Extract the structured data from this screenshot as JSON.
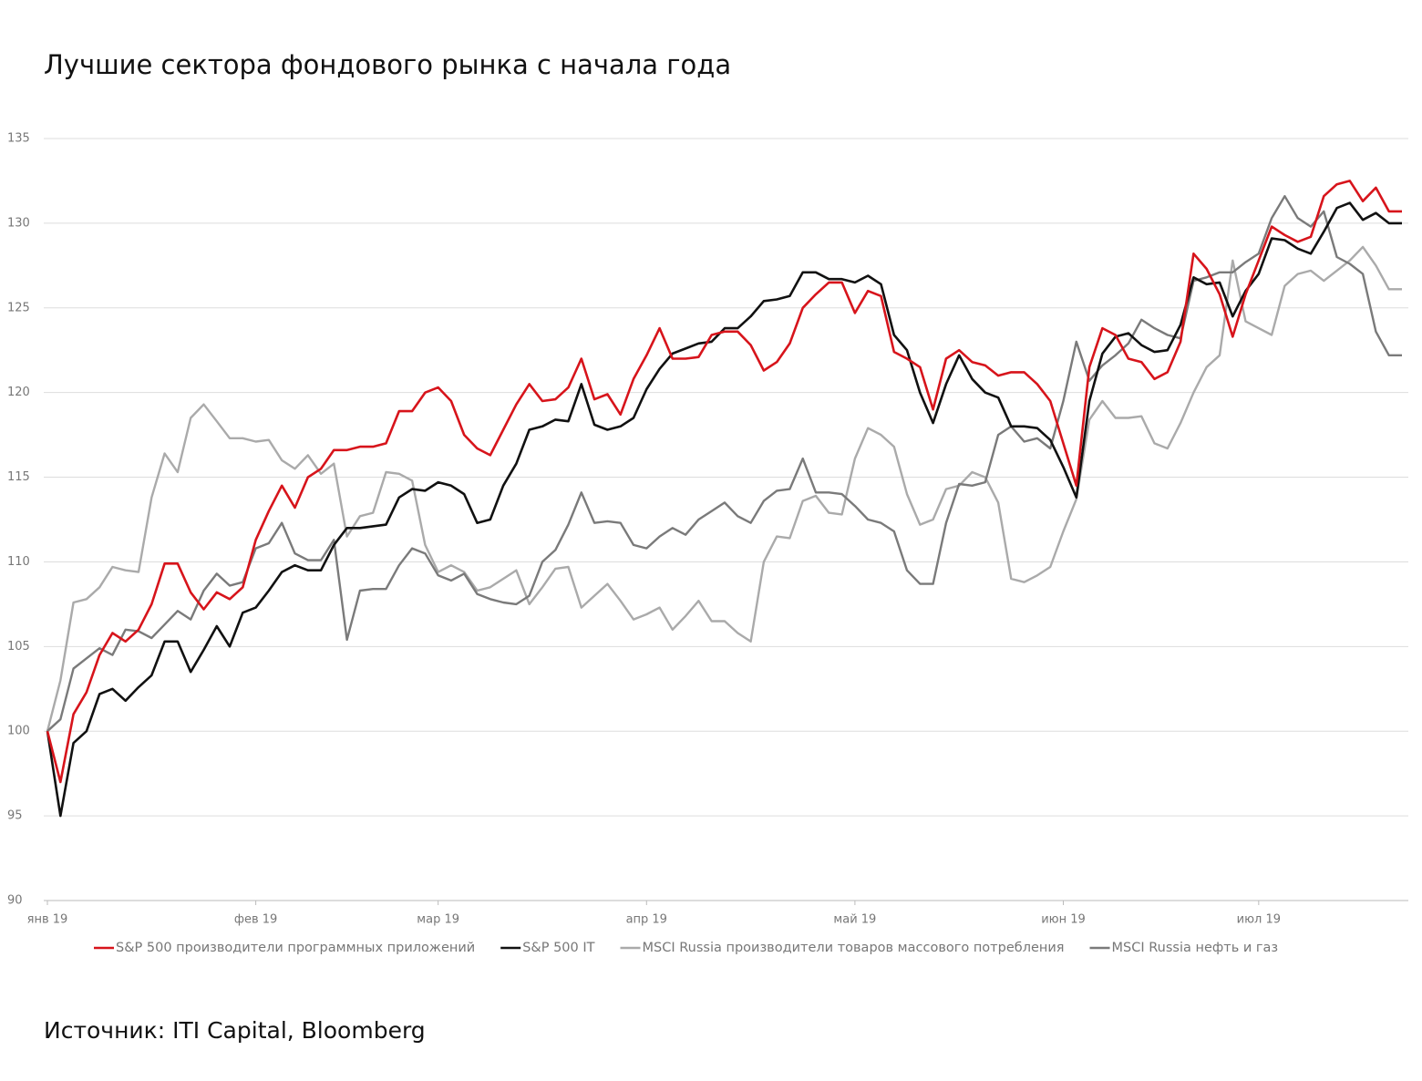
{
  "chart_data": {
    "type": "line",
    "title": "Лучшие сектора фондового рынка с начала года",
    "source": "Источник: ITI Capital, Bloomberg",
    "categories": [
      "янв 19",
      null,
      null,
      null,
      null,
      null,
      null,
      null,
      null,
      null,
      null,
      null,
      null,
      null,
      null,
      null,
      "фев 19",
      null,
      null,
      null,
      null,
      null,
      null,
      null,
      null,
      null,
      null,
      null,
      null,
      null,
      "мар 19",
      null,
      null,
      null,
      null,
      null,
      null,
      null,
      null,
      null,
      null,
      null,
      null,
      null,
      null,
      null,
      "апр 19",
      null,
      null,
      null,
      null,
      null,
      null,
      null,
      null,
      null,
      null,
      null,
      null,
      null,
      null,
      null,
      "май 19",
      null,
      null,
      null,
      null,
      null,
      null,
      null,
      null,
      null,
      null,
      null,
      null,
      null,
      null,
      null,
      "июн 19",
      null,
      null,
      null,
      null,
      null,
      null,
      null,
      null,
      null,
      null,
      null,
      null,
      null,
      null,
      "июл 19",
      null,
      null,
      null,
      null,
      null,
      null,
      null,
      null,
      null,
      null,
      null
    ],
    "ylim": [
      90,
      135
    ],
    "yticks": [
      90,
      95,
      100,
      105,
      110,
      115,
      120,
      125,
      130,
      135
    ],
    "grid": true,
    "legend": "bottom",
    "series": [
      {
        "name": "S&P 500 производители программных приложений",
        "color": "#d7141b",
        "values": [
          100,
          97,
          101,
          102.3,
          104.5,
          105.8,
          105.3,
          106,
          107.5,
          109.9,
          109.9,
          108.2,
          107.2,
          108.2,
          107.8,
          108.5,
          111.3,
          113,
          114.5,
          113.2,
          115,
          115.5,
          116.6,
          116.6,
          116.8,
          116.8,
          117,
          118.9,
          118.9,
          120,
          120.3,
          119.5,
          117.5,
          116.7,
          116.3,
          117.8,
          119.3,
          120.5,
          119.5,
          119.6,
          120.3,
          122,
          119.6,
          119.9,
          118.7,
          120.8,
          122.2,
          123.8,
          122,
          122,
          122.1,
          123.4,
          123.6,
          123.6,
          122.8,
          121.3,
          121.8,
          122.9,
          125,
          125.8,
          126.5,
          126.5,
          124.7,
          126,
          125.7,
          122.4,
          122,
          121.5,
          119,
          122,
          122.5,
          121.8,
          121.6,
          121,
          121.2,
          121.2,
          120.5,
          119.5,
          117,
          114.5,
          121.5,
          123.8,
          123.4,
          122,
          121.8,
          120.8,
          121.2,
          123,
          128.2,
          127.3,
          125.8,
          123.3,
          125.8,
          127.8,
          129.8,
          129.3,
          128.9,
          129.2,
          131.6,
          132.3,
          132.5,
          131.3,
          132.1,
          130.7,
          130.7
        ]
      },
      {
        "name": "S&P 500 IT",
        "color": "#111111",
        "values": [
          100,
          95,
          99.3,
          100,
          102.2,
          102.5,
          101.8,
          102.6,
          103.3,
          105.3,
          105.3,
          103.5,
          104.8,
          106.2,
          105,
          107,
          107.3,
          108.3,
          109.4,
          109.8,
          109.5,
          109.5,
          111,
          112,
          112,
          112.1,
          112.2,
          113.8,
          114.3,
          114.2,
          114.7,
          114.5,
          114,
          112.3,
          112.5,
          114.5,
          115.8,
          117.8,
          118,
          118.4,
          118.3,
          120.5,
          118.1,
          117.8,
          118,
          118.5,
          120.2,
          121.4,
          122.3,
          122.6,
          122.9,
          123,
          123.8,
          123.8,
          124.5,
          125.4,
          125.5,
          125.7,
          127.1,
          127.1,
          126.7,
          126.7,
          126.5,
          126.9,
          126.4,
          123.4,
          122.5,
          120,
          118.2,
          120.5,
          122.2,
          120.8,
          120,
          119.7,
          118,
          118,
          117.9,
          117.2,
          115.6,
          113.8,
          119.5,
          122.3,
          123.3,
          123.5,
          122.8,
          122.4,
          122.5,
          124,
          126.8,
          126.4,
          126.5,
          124.5,
          126,
          127,
          129.1,
          129,
          128.5,
          128.2,
          129.5,
          130.9,
          131.2,
          130.2,
          130.6,
          130,
          130
        ]
      },
      {
        "name": "MSCI Russia производители товаров массового потребления",
        "color": "#aaaaaa",
        "values": [
          100,
          103,
          107.6,
          107.8,
          108.5,
          109.7,
          109.5,
          109.4,
          113.8,
          116.4,
          115.3,
          118.5,
          119.3,
          118.3,
          117.3,
          117.3,
          117.1,
          117.2,
          116,
          115.5,
          116.3,
          115.2,
          115.8,
          111.5,
          112.7,
          112.9,
          115.3,
          115.2,
          114.8,
          111,
          109.4,
          109.8,
          109.4,
          108.3,
          108.5,
          109,
          109.5,
          107.5,
          108.5,
          109.6,
          109.7,
          107.3,
          108,
          108.7,
          107.7,
          106.6,
          106.9,
          107.3,
          106,
          106.8,
          107.7,
          106.5,
          106.5,
          105.8,
          105.3,
          110,
          111.5,
          111.4,
          113.6,
          113.9,
          112.9,
          112.8,
          116.1,
          117.9,
          117.5,
          116.8,
          114,
          112.2,
          112.5,
          114.3,
          114.5,
          115.3,
          115,
          113.5,
          109,
          108.8,
          109.2,
          109.7,
          111.8,
          113.7,
          118.4,
          119.5,
          118.5,
          118.5,
          118.6,
          117,
          116.7,
          118.2,
          120,
          121.5,
          122.2,
          127.8,
          124.2,
          123.8,
          123.4,
          126.3,
          127,
          127.2,
          126.6,
          127.2,
          127.8,
          128.6,
          127.5,
          126.1,
          126.1
        ]
      },
      {
        "name": "MSCI Russia нефть и газ",
        "color": "#7a7a7a",
        "values": [
          100,
          100.7,
          103.7,
          104.3,
          104.9,
          104.5,
          106,
          105.9,
          105.5,
          106.3,
          107.1,
          106.6,
          108.3,
          109.3,
          108.6,
          108.8,
          110.8,
          111.1,
          112.3,
          110.5,
          110.1,
          110.1,
          111.3,
          105.4,
          108.3,
          108.4,
          108.4,
          109.8,
          110.8,
          110.5,
          109.2,
          108.9,
          109.3,
          108.1,
          107.8,
          107.6,
          107.5,
          108,
          110,
          110.7,
          112.2,
          114.1,
          112.3,
          112.4,
          112.3,
          111,
          110.8,
          111.5,
          112,
          111.6,
          112.5,
          113,
          113.5,
          112.7,
          112.3,
          113.6,
          114.2,
          114.3,
          116.1,
          114.1,
          114.1,
          114,
          113.3,
          112.5,
          112.3,
          111.8,
          109.5,
          108.7,
          108.7,
          112.3,
          114.6,
          114.5,
          114.7,
          117.5,
          118,
          117.1,
          117.3,
          116.7,
          119.5,
          123,
          120.7,
          121.6,
          122.2,
          122.9,
          124.3,
          123.8,
          123.4,
          123.2,
          126.6,
          126.8,
          127.1,
          127.1,
          127.7,
          128.2,
          130.3,
          131.6,
          130.3,
          129.8,
          130.7,
          128,
          127.6,
          127,
          123.6,
          122.2,
          122.2
        ]
      }
    ]
  }
}
